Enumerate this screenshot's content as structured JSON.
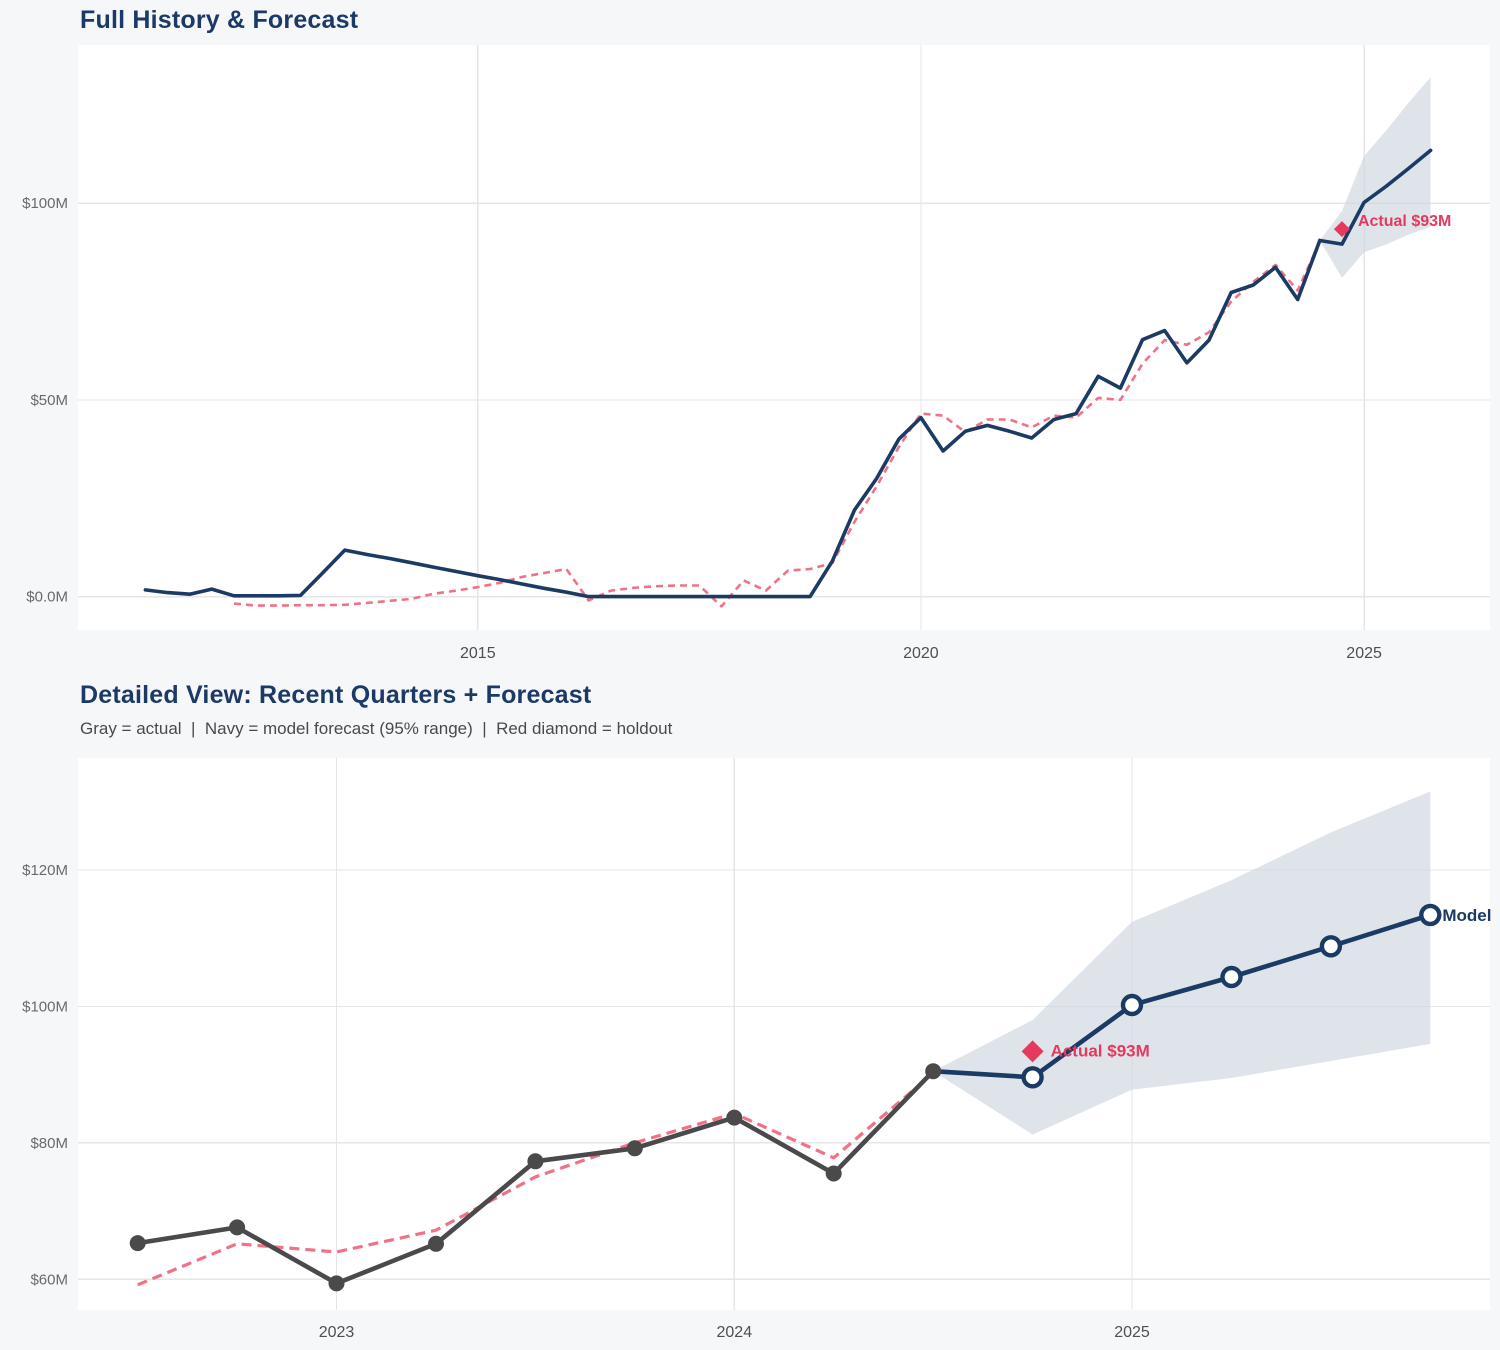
{
  "page": {
    "background": "#f6f7f9",
    "plot_background": "#ffffff",
    "gridline_color": "#e6e6e6",
    "colors": {
      "navy": "#1b3a64",
      "gray_actual": "#4a4a4a",
      "pink_fit": "#f07286",
      "crimson_holdout": "#e6395e",
      "band_fill": "#ccd3df",
      "title_navy": "#1c3a67",
      "tick_label": "#6a6a6a",
      "year_label": "#4f4f4f"
    }
  },
  "chart_data": [
    {
      "id": "chart1",
      "type": "line",
      "title": "Full History & Forecast",
      "xlabel": "",
      "ylabel": "",
      "xlim": [
        2010.49,
        2026.42
      ],
      "ylim": [
        -8.5,
        140.2
      ],
      "grid": true,
      "x_ticks": [
        {
          "v": 2015,
          "label": "2015"
        },
        {
          "v": 2020,
          "label": "2020"
        },
        {
          "v": 2025,
          "label": "2025"
        }
      ],
      "y_ticks": [
        {
          "v": 0,
          "label": "$0.0M"
        },
        {
          "v": 50,
          "label": "$50M"
        },
        {
          "v": 100,
          "label": "$100M"
        }
      ],
      "series": {
        "band": {
          "name": "forecast 95% range",
          "t": [
            2024.5,
            2024.75,
            2025.0,
            2025.25,
            2025.5,
            2025.75
          ],
          "hi": [
            90.5,
            98,
            112,
            118.5,
            125.5,
            132
          ],
          "lo": [
            90.5,
            81,
            87.5,
            89.5,
            92,
            94
          ]
        },
        "fit": {
          "name": "model fit (dashed)",
          "t": [
            2012.25,
            2012.5,
            2012.75,
            2013.0,
            2013.25,
            2013.5,
            2013.75,
            2014.0,
            2014.25,
            2014.5,
            2014.75,
            2015.0,
            2015.25,
            2015.5,
            2015.75,
            2016.0,
            2016.25,
            2016.5,
            2016.75,
            2017.0,
            2017.25,
            2017.5,
            2017.75,
            2018.0,
            2018.25,
            2018.5,
            2018.75,
            2019.0,
            2019.25,
            2019.5,
            2019.75,
            2020.0,
            2020.25,
            2020.5,
            2020.75,
            2021.0,
            2021.25,
            2021.5,
            2021.75,
            2022.0,
            2022.25,
            2022.5,
            2022.75,
            2023.0,
            2023.25,
            2023.5,
            2023.75,
            2024.0,
            2024.25,
            2024.5
          ],
          "v": [
            -1.8,
            -2.3,
            -2.3,
            -2.2,
            -2.2,
            -2.1,
            -1.6,
            -1.1,
            -0.6,
            0.7,
            1.5,
            2.4,
            3.5,
            5.0,
            6.0,
            7.0,
            -1.0,
            1.5,
            2.2,
            2.6,
            2.8,
            2.8,
            -2.5,
            4.1,
            1.5,
            6.6,
            7.0,
            8.5,
            19,
            28,
            38,
            46.5,
            46,
            41.8,
            45,
            45,
            43,
            46,
            45.5,
            50.5,
            50,
            59.2,
            65.2,
            64.0,
            67.2,
            75.0,
            80.0,
            84.3,
            77.8,
            90.2
          ]
        },
        "actual": {
          "name": "actual history",
          "t": [
            2011.25,
            2011.5,
            2011.75,
            2012.0,
            2012.25,
            2012.5,
            2012.75,
            2013.0,
            2013.25,
            2013.5,
            2013.75,
            2014.0,
            2014.25,
            2014.5,
            2014.75,
            2015.0,
            2015.25,
            2015.5,
            2015.75,
            2016.0,
            2016.25,
            2016.5,
            2016.75,
            2017.0,
            2017.25,
            2017.5,
            2017.75,
            2018.0,
            2018.25,
            2018.5,
            2018.75,
            2019.0,
            2019.25,
            2019.5,
            2019.75,
            2020.0,
            2020.25,
            2020.5,
            2020.75,
            2021.0,
            2021.25,
            2021.5,
            2021.75,
            2022.0,
            2022.25,
            2022.5,
            2022.75,
            2023.0,
            2023.25,
            2023.5,
            2023.75,
            2024.0,
            2024.25,
            2024.5
          ],
          "v": [
            1.7,
            1.0,
            0.6,
            1.9,
            0.2,
            0.2,
            0.2,
            0.3,
            6.0,
            11.8,
            10.7,
            9.7,
            8.6,
            7.5,
            6.4,
            5.3,
            4.3,
            3.2,
            2.1,
            1.1,
            0,
            0,
            0,
            0,
            0,
            0,
            0,
            0,
            0,
            0,
            0,
            9,
            22,
            30,
            40,
            45.5,
            37,
            42,
            43.5,
            42,
            40.3,
            45,
            46.5,
            56,
            53,
            65.3,
            67.6,
            59.4,
            65.2,
            77.3,
            79.2,
            83.7,
            75.5,
            90.5
          ]
        },
        "forecast": {
          "name": "model forecast",
          "t": [
            2024.5,
            2024.75,
            2025.0,
            2025.25,
            2025.5,
            2025.75
          ],
          "v": [
            90.5,
            89.6,
            100.2,
            104.3,
            108.8,
            113.4
          ]
        }
      },
      "annotations": [
        {
          "kind": "holdout",
          "text": "Actual $93M",
          "t": 2024.75,
          "v": 93.4
        }
      ]
    },
    {
      "id": "chart2",
      "type": "line",
      "title": "Detailed View: Recent Quarters + Forecast",
      "subtitle": "Gray = actual  |  Navy = model forecast (95% range)  |  Red diamond = holdout",
      "xlabel": "",
      "ylabel": "",
      "xlim": [
        2022.35,
        2025.9
      ],
      "ylim": [
        55.5,
        136.4
      ],
      "grid": true,
      "x_ticks": [
        {
          "v": 2023,
          "label": "2023"
        },
        {
          "v": 2024,
          "label": "2024"
        },
        {
          "v": 2025,
          "label": "2025"
        }
      ],
      "y_ticks": [
        {
          "v": 60,
          "label": "$60M"
        },
        {
          "v": 80,
          "label": "$80M"
        },
        {
          "v": 100,
          "label": "$100M"
        },
        {
          "v": 120,
          "label": "$120M"
        }
      ],
      "series": {
        "band": {
          "name": "forecast 95% range",
          "t": [
            2024.5,
            2024.75,
            2025.0,
            2025.25,
            2025.5,
            2025.75
          ],
          "hi": [
            90.5,
            98,
            112.4,
            118.5,
            125.5,
            131.5
          ],
          "lo": [
            90.5,
            81.2,
            87.8,
            89.5,
            92,
            94.5
          ]
        },
        "fit": {
          "name": "model fit (dashed)",
          "t": [
            2022.5,
            2022.75,
            2023.0,
            2023.25,
            2023.5,
            2023.75,
            2024.0,
            2024.25,
            2024.5
          ],
          "v": [
            59.2,
            65.2,
            64.0,
            67.2,
            75.0,
            80.0,
            84.3,
            77.8,
            90.2
          ]
        },
        "actual": {
          "name": "actual (gray dots)",
          "t": [
            2022.5,
            2022.75,
            2023.0,
            2023.25,
            2023.5,
            2023.75,
            2024.0,
            2024.25,
            2024.5
          ],
          "v": [
            65.3,
            67.6,
            59.4,
            65.2,
            77.3,
            79.2,
            83.7,
            75.5,
            90.5
          ]
        },
        "forecast": {
          "name": "model forecast (open circles)",
          "t": [
            2024.5,
            2024.75,
            2025.0,
            2025.25,
            2025.5,
            2025.75
          ],
          "v": [
            90.5,
            89.6,
            100.2,
            104.3,
            108.8,
            113.4
          ]
        }
      },
      "annotations": [
        {
          "kind": "holdout",
          "text": "Actual $93M",
          "t": 2024.75,
          "v": 93.4
        },
        {
          "kind": "model_label",
          "text": "Model",
          "t": 2025.75,
          "v": 113.4
        }
      ]
    }
  ]
}
